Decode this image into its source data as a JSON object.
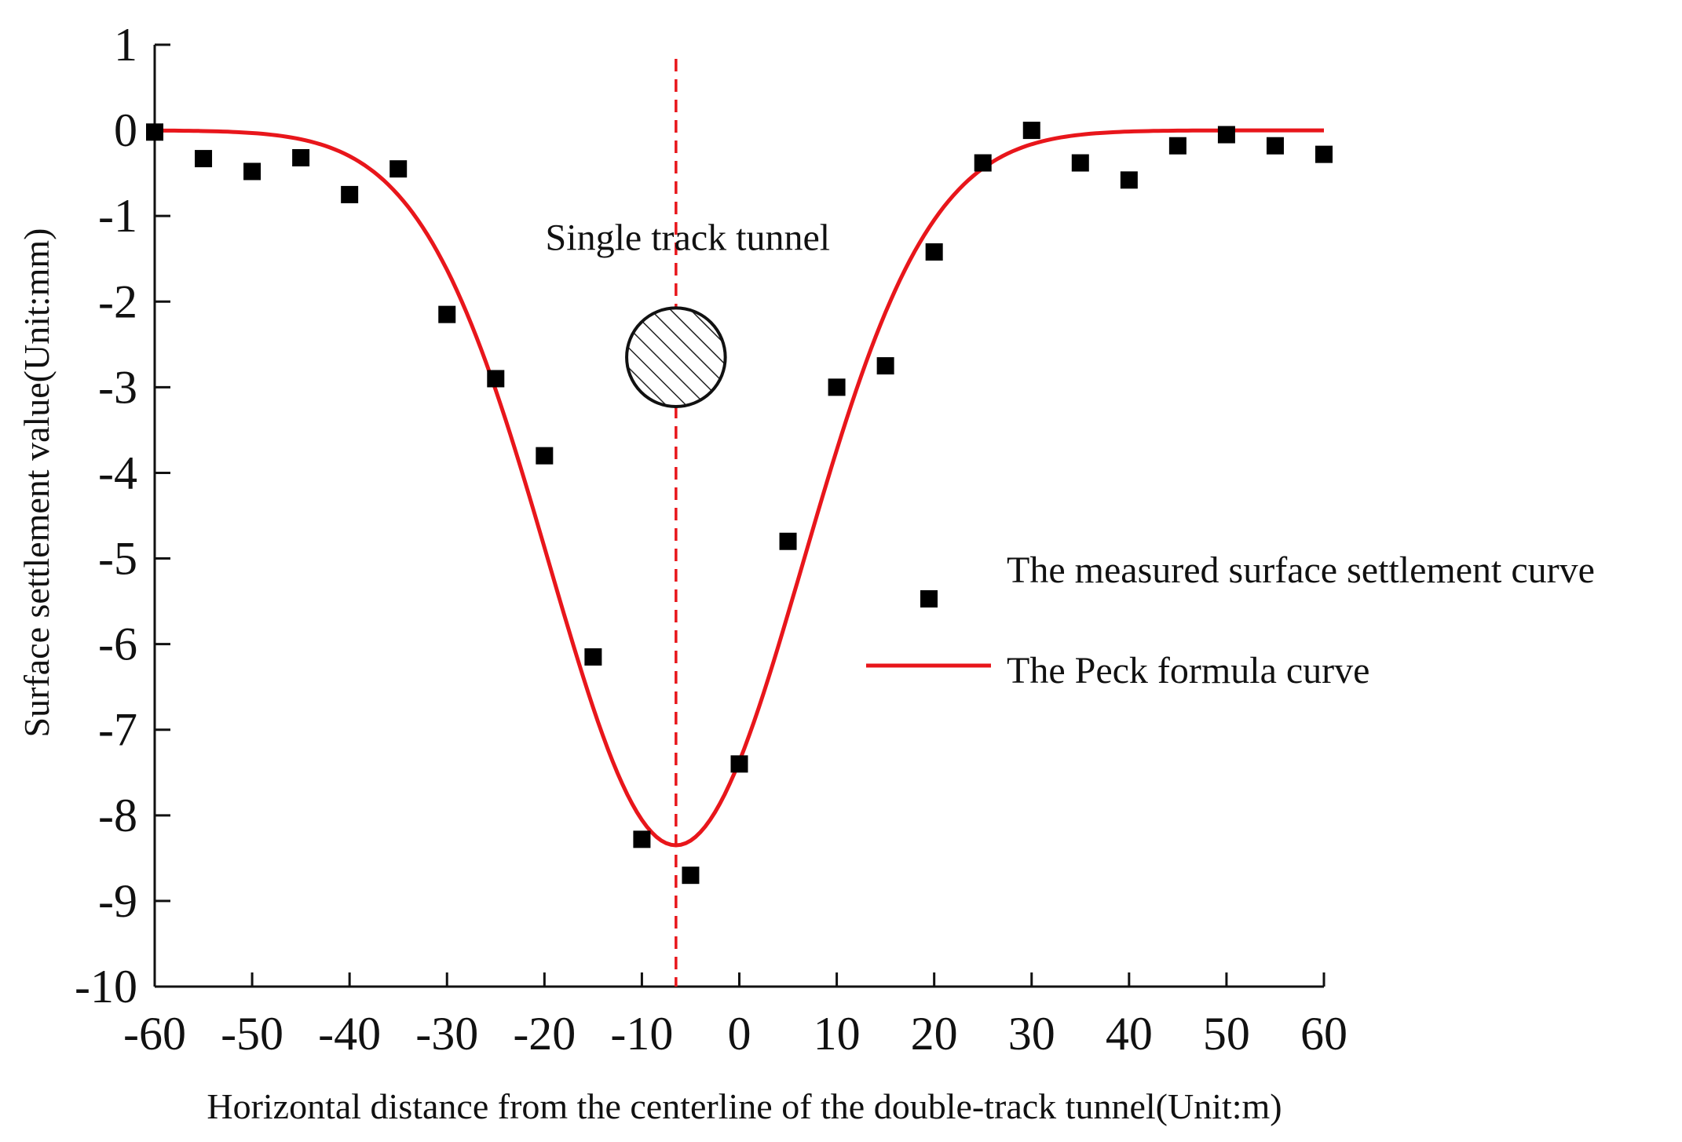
{
  "chart_data": {
    "type": "scatter",
    "title": "",
    "xlabel": "Horizontal distance from the centerline of the double-track tunnel(Unit:m)",
    "ylabel": "Surface settlement value(Unit:mm)",
    "xlim": [
      -60,
      60
    ],
    "ylim": [
      -10,
      1
    ],
    "xticks": [
      "-60",
      "-50",
      "-40",
      "-30",
      "-20",
      "-10",
      "0",
      "10",
      "20",
      "30",
      "40",
      "50",
      "60"
    ],
    "yticks": [
      "1",
      "0",
      "-1",
      "-2",
      "-3",
      "-4",
      "-5",
      "-6",
      "-7",
      "-8",
      "-9",
      "-10"
    ],
    "grid": false,
    "legend_position": "right",
    "series": [
      {
        "name": "The measured surface settlement curve",
        "kind": "scatter",
        "color": "#000000",
        "x": [
          -60,
          -55,
          -50,
          -45,
          -40,
          -35,
          -30,
          -25,
          -20,
          -15,
          -10,
          -5,
          0,
          5,
          10,
          15,
          20,
          25,
          30,
          35,
          40,
          45,
          50,
          55,
          60
        ],
        "y": [
          -0.02,
          -0.33,
          -0.48,
          -0.32,
          -0.75,
          -0.45,
          -2.15,
          -2.9,
          -3.8,
          -6.15,
          -8.28,
          -8.7,
          -7.4,
          -4.8,
          -3.0,
          -2.75,
          -1.42,
          -0.38,
          0.0,
          -0.38,
          -0.58,
          -0.18,
          -0.05,
          -0.18,
          -0.28
        ]
      },
      {
        "name": "The Peck formula curve",
        "kind": "line",
        "color": "#e8161b",
        "model": {
          "smax": -8.35,
          "center": -6.5,
          "width": 13.0
        }
      }
    ],
    "annotations": [
      {
        "text": "Single track tunnel",
        "x": -6.5,
        "y": -1.25
      }
    ],
    "tunnel_marker": {
      "x": -6.5,
      "y": -2.65,
      "radius_m": 5.5
    },
    "centerline": {
      "x": -6.5,
      "color": "#e8161b",
      "style": "dashed"
    }
  }
}
